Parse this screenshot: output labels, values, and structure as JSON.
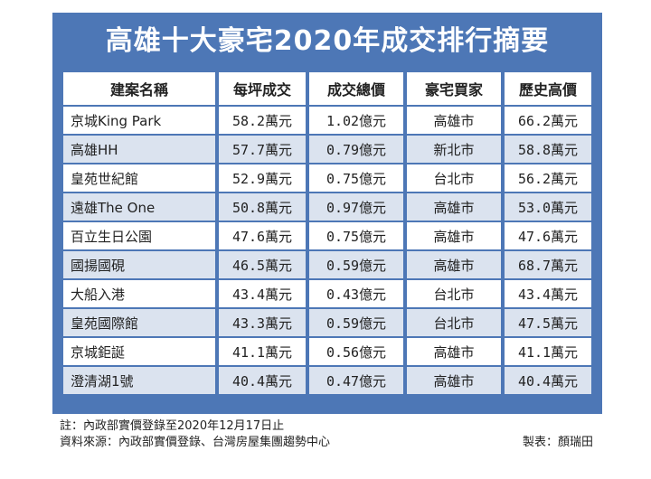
{
  "title": "高雄十大豪宅2020年成交排行摘要",
  "headers": [
    "建案名稱",
    "每坪成交",
    "成交總價",
    "豪宅買家",
    "歷史高價"
  ],
  "rows": [
    [
      "京城King Park",
      "58.2萬元",
      "1.02億元",
      "高雄市",
      "66.2萬元"
    ],
    [
      "高雄HH",
      "57.7萬元",
      "0.79億元",
      "新北市",
      "58.8萬元"
    ],
    [
      "皇苑世紀館",
      "52.9萬元",
      "0.75億元",
      "台北市",
      "56.2萬元"
    ],
    [
      "遠雄The One",
      "50.8萬元",
      "0.97億元",
      "高雄市",
      "53.0萬元"
    ],
    [
      "百立生日公園",
      "47.6萬元",
      "0.75億元",
      "高雄市",
      "47.6萬元"
    ],
    [
      "國揚國硯",
      "46.5萬元",
      "0.59億元",
      "高雄市",
      "68.7萬元"
    ],
    [
      "大船入港",
      "43.4萬元",
      "0.43億元",
      "台北市",
      "43.4萬元"
    ],
    [
      "皇苑國際館",
      "43.3萬元",
      "0.59億元",
      "台北市",
      "47.5萬元"
    ],
    [
      "京城鉅誕",
      "41.1萬元",
      "0.56億元",
      "高雄市",
      "41.1萬元"
    ],
    [
      "澄清湖1號",
      "40.4萬元",
      "0.47億元",
      "高雄市",
      "40.4萬元"
    ]
  ],
  "footer": {
    "note": "註：內政部實價登錄至2020年12月17日止",
    "source": "資料來源：內政部實價登錄、台灣房屋集團趨勢中心",
    "credit": "製表：顏瑞田"
  },
  "colors": {
    "header_band": "#4d77b6",
    "row_alt": "#dbe3ef"
  }
}
